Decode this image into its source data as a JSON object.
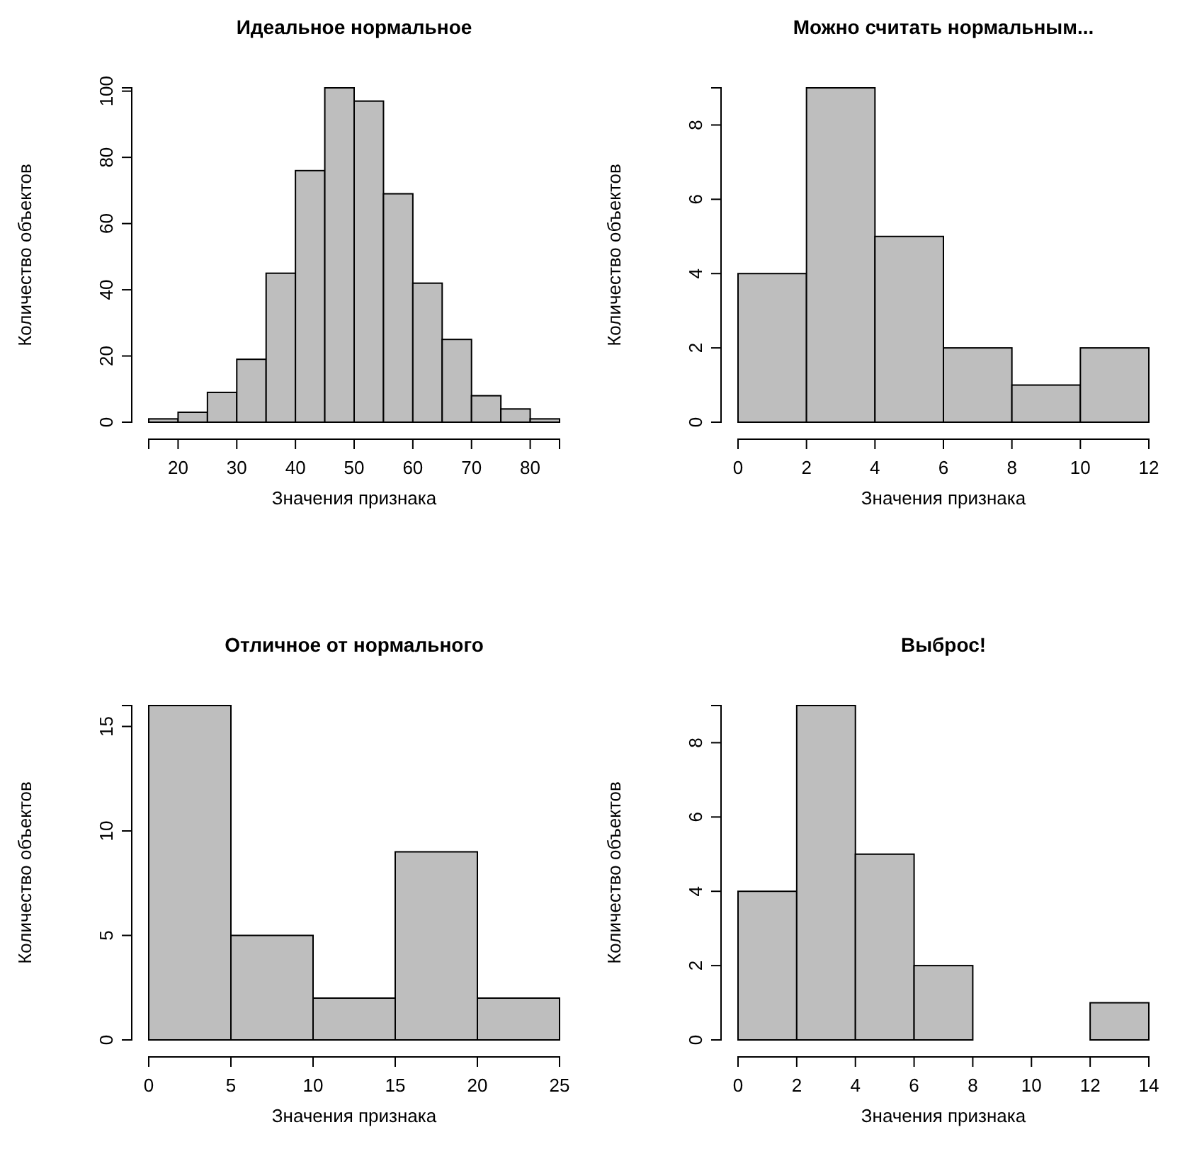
{
  "chart_data": [
    {
      "type": "histogram",
      "title": "Идеальное нормальное",
      "xlabel": "Значения признака",
      "ylabel": "Количество объектов",
      "bins": [
        15,
        20,
        25,
        30,
        35,
        40,
        45,
        50,
        55,
        60,
        65,
        70,
        75,
        80,
        85
      ],
      "values": [
        1,
        3,
        9,
        19,
        45,
        76,
        101,
        97,
        69,
        42,
        25,
        8,
        4,
        1
      ],
      "color": "#bebebe",
      "xlim": [
        15,
        85
      ],
      "xticks": [
        20,
        30,
        40,
        50,
        60,
        70,
        80
      ],
      "ylim": [
        0,
        101
      ],
      "yticks": [
        0,
        20,
        40,
        60,
        80,
        100
      ]
    },
    {
      "type": "histogram",
      "title": "Можно считать нормальным...",
      "xlabel": "Значения признака",
      "ylabel": "Количество объектов",
      "bins": [
        0,
        2,
        4,
        6,
        8,
        10,
        12
      ],
      "values": [
        4,
        9,
        5,
        2,
        1,
        2
      ],
      "color": "#bebebe",
      "xlim": [
        0,
        12
      ],
      "xticks": [
        0,
        2,
        4,
        6,
        8,
        10,
        12
      ],
      "ylim": [
        0,
        9
      ],
      "yticks": [
        0,
        2,
        4,
        6,
        8
      ]
    },
    {
      "type": "histogram",
      "title": "Отличное от нормального",
      "xlabel": "Значения признака",
      "ylabel": "Количество объектов",
      "bins": [
        0,
        5,
        10,
        15,
        20,
        25
      ],
      "values": [
        16,
        5,
        2,
        9,
        2
      ],
      "color": "#bebebe",
      "xlim": [
        0,
        25
      ],
      "xticks": [
        0,
        5,
        10,
        15,
        20,
        25
      ],
      "ylim": [
        0,
        16
      ],
      "yticks": [
        0,
        5,
        10,
        15
      ]
    },
    {
      "type": "histogram",
      "title": "Выброс!",
      "xlabel": "Значения признака",
      "ylabel": "Количество объектов",
      "bins": [
        0,
        2,
        4,
        6,
        8,
        10,
        12,
        14
      ],
      "values": [
        4,
        9,
        5,
        2,
        0,
        0,
        1
      ],
      "color": "#bebebe",
      "xlim": [
        0,
        14
      ],
      "xticks": [
        0,
        2,
        4,
        6,
        8,
        10,
        12,
        14
      ],
      "ylim": [
        0,
        9
      ],
      "yticks": [
        0,
        2,
        4,
        6,
        8
      ]
    }
  ]
}
